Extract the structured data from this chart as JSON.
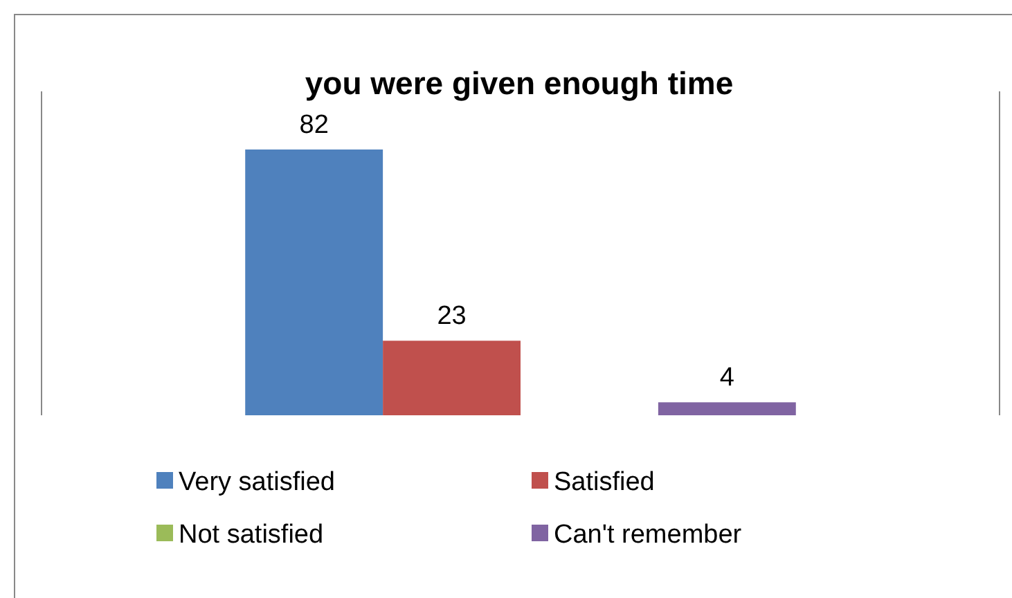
{
  "chart_data": {
    "type": "bar",
    "title": "you were given enough time",
    "categories": [
      null
    ],
    "series": [
      {
        "name": "Very satisfied",
        "color": "#4f81bd",
        "values": [
          82
        ]
      },
      {
        "name": "Satisfied",
        "color": "#c0504d",
        "values": [
          23
        ]
      },
      {
        "name": "Not satisfied",
        "color": "#9bbb59",
        "values": [
          null
        ]
      },
      {
        "name": "Can't remember",
        "color": "#8064a2",
        "values": [
          4
        ]
      }
    ],
    "data_labels": true,
    "legend": "bottom",
    "tick_labels": false
  }
}
